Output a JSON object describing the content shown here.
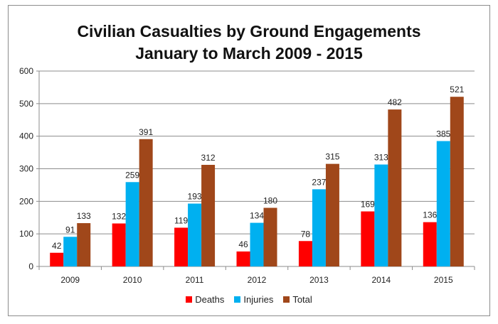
{
  "chart_data": {
    "type": "bar",
    "title_line1": "Civilian Casualties by Ground Engagements",
    "title_line2": "January to March 2009 - 2015",
    "categories": [
      "2009",
      "2010",
      "2011",
      "2012",
      "2013",
      "2014",
      "2015"
    ],
    "series": [
      {
        "name": "Deaths",
        "color": "#ff0000",
        "values": [
          42,
          132,
          119,
          46,
          78,
          169,
          136
        ]
      },
      {
        "name": "Injuries",
        "color": "#00b0f0",
        "values": [
          91,
          259,
          193,
          134,
          237,
          313,
          385
        ]
      },
      {
        "name": "Total",
        "color": "#a0471a",
        "values": [
          133,
          391,
          312,
          180,
          315,
          482,
          521
        ]
      }
    ],
    "ylim": [
      0,
      600
    ],
    "yticks": [
      0,
      100,
      200,
      300,
      400,
      500,
      600
    ],
    "grid": true,
    "legend_position": "bottom",
    "xlabel": "",
    "ylabel": ""
  }
}
